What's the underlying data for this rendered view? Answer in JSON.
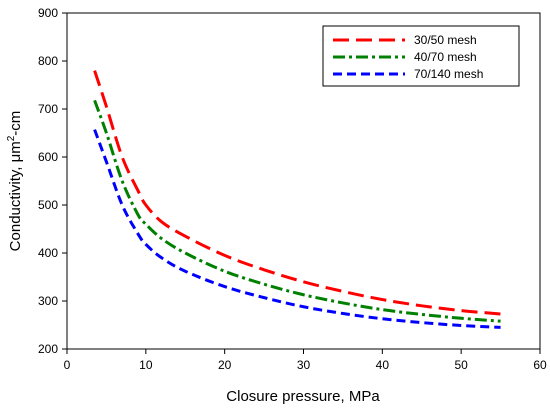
{
  "chart_data": {
    "type": "line",
    "xlabel": "Closure pressure, MPa",
    "ylabel_main": "Conductivity, μm",
    "ylabel_sup": "2",
    "ylabel_tail": "-cm",
    "xlim": [
      0,
      60
    ],
    "ylim": [
      200,
      900
    ],
    "xticks": [
      "0",
      "10",
      "20",
      "30",
      "40",
      "50",
      "60"
    ],
    "yticks": [
      "200",
      "300",
      "400",
      "500",
      "600",
      "700",
      "800",
      "900"
    ],
    "grid": false,
    "legend_position": "top-right",
    "series": [
      {
        "name": "30/50 mesh",
        "color": "#ff0000",
        "dash": "dashed",
        "x": [
          3.5,
          5,
          7,
          9,
          10,
          12,
          15,
          20,
          25,
          30,
          35,
          40,
          45,
          50,
          55
        ],
        "y": [
          780,
          705,
          600,
          530,
          500,
          465,
          435,
          395,
          365,
          340,
          320,
          303,
          290,
          280,
          273
        ]
      },
      {
        "name": "40/70 mesh",
        "color": "#008000",
        "dash": "dashdot",
        "x": [
          3.5,
          5,
          7,
          9,
          10,
          12,
          15,
          20,
          25,
          30,
          35,
          40,
          45,
          50,
          55
        ],
        "y": [
          718,
          650,
          550,
          480,
          460,
          430,
          400,
          362,
          335,
          313,
          296,
          282,
          272,
          264,
          258
        ]
      },
      {
        "name": "70/140 mesh",
        "color": "#0000ff",
        "dash": "shortdash",
        "x": [
          3.5,
          5,
          7,
          9,
          10,
          12,
          15,
          20,
          25,
          30,
          35,
          40,
          45,
          50,
          55
        ],
        "y": [
          657,
          590,
          500,
          440,
          418,
          390,
          362,
          330,
          307,
          288,
          274,
          263,
          255,
          249,
          245
        ]
      }
    ]
  }
}
